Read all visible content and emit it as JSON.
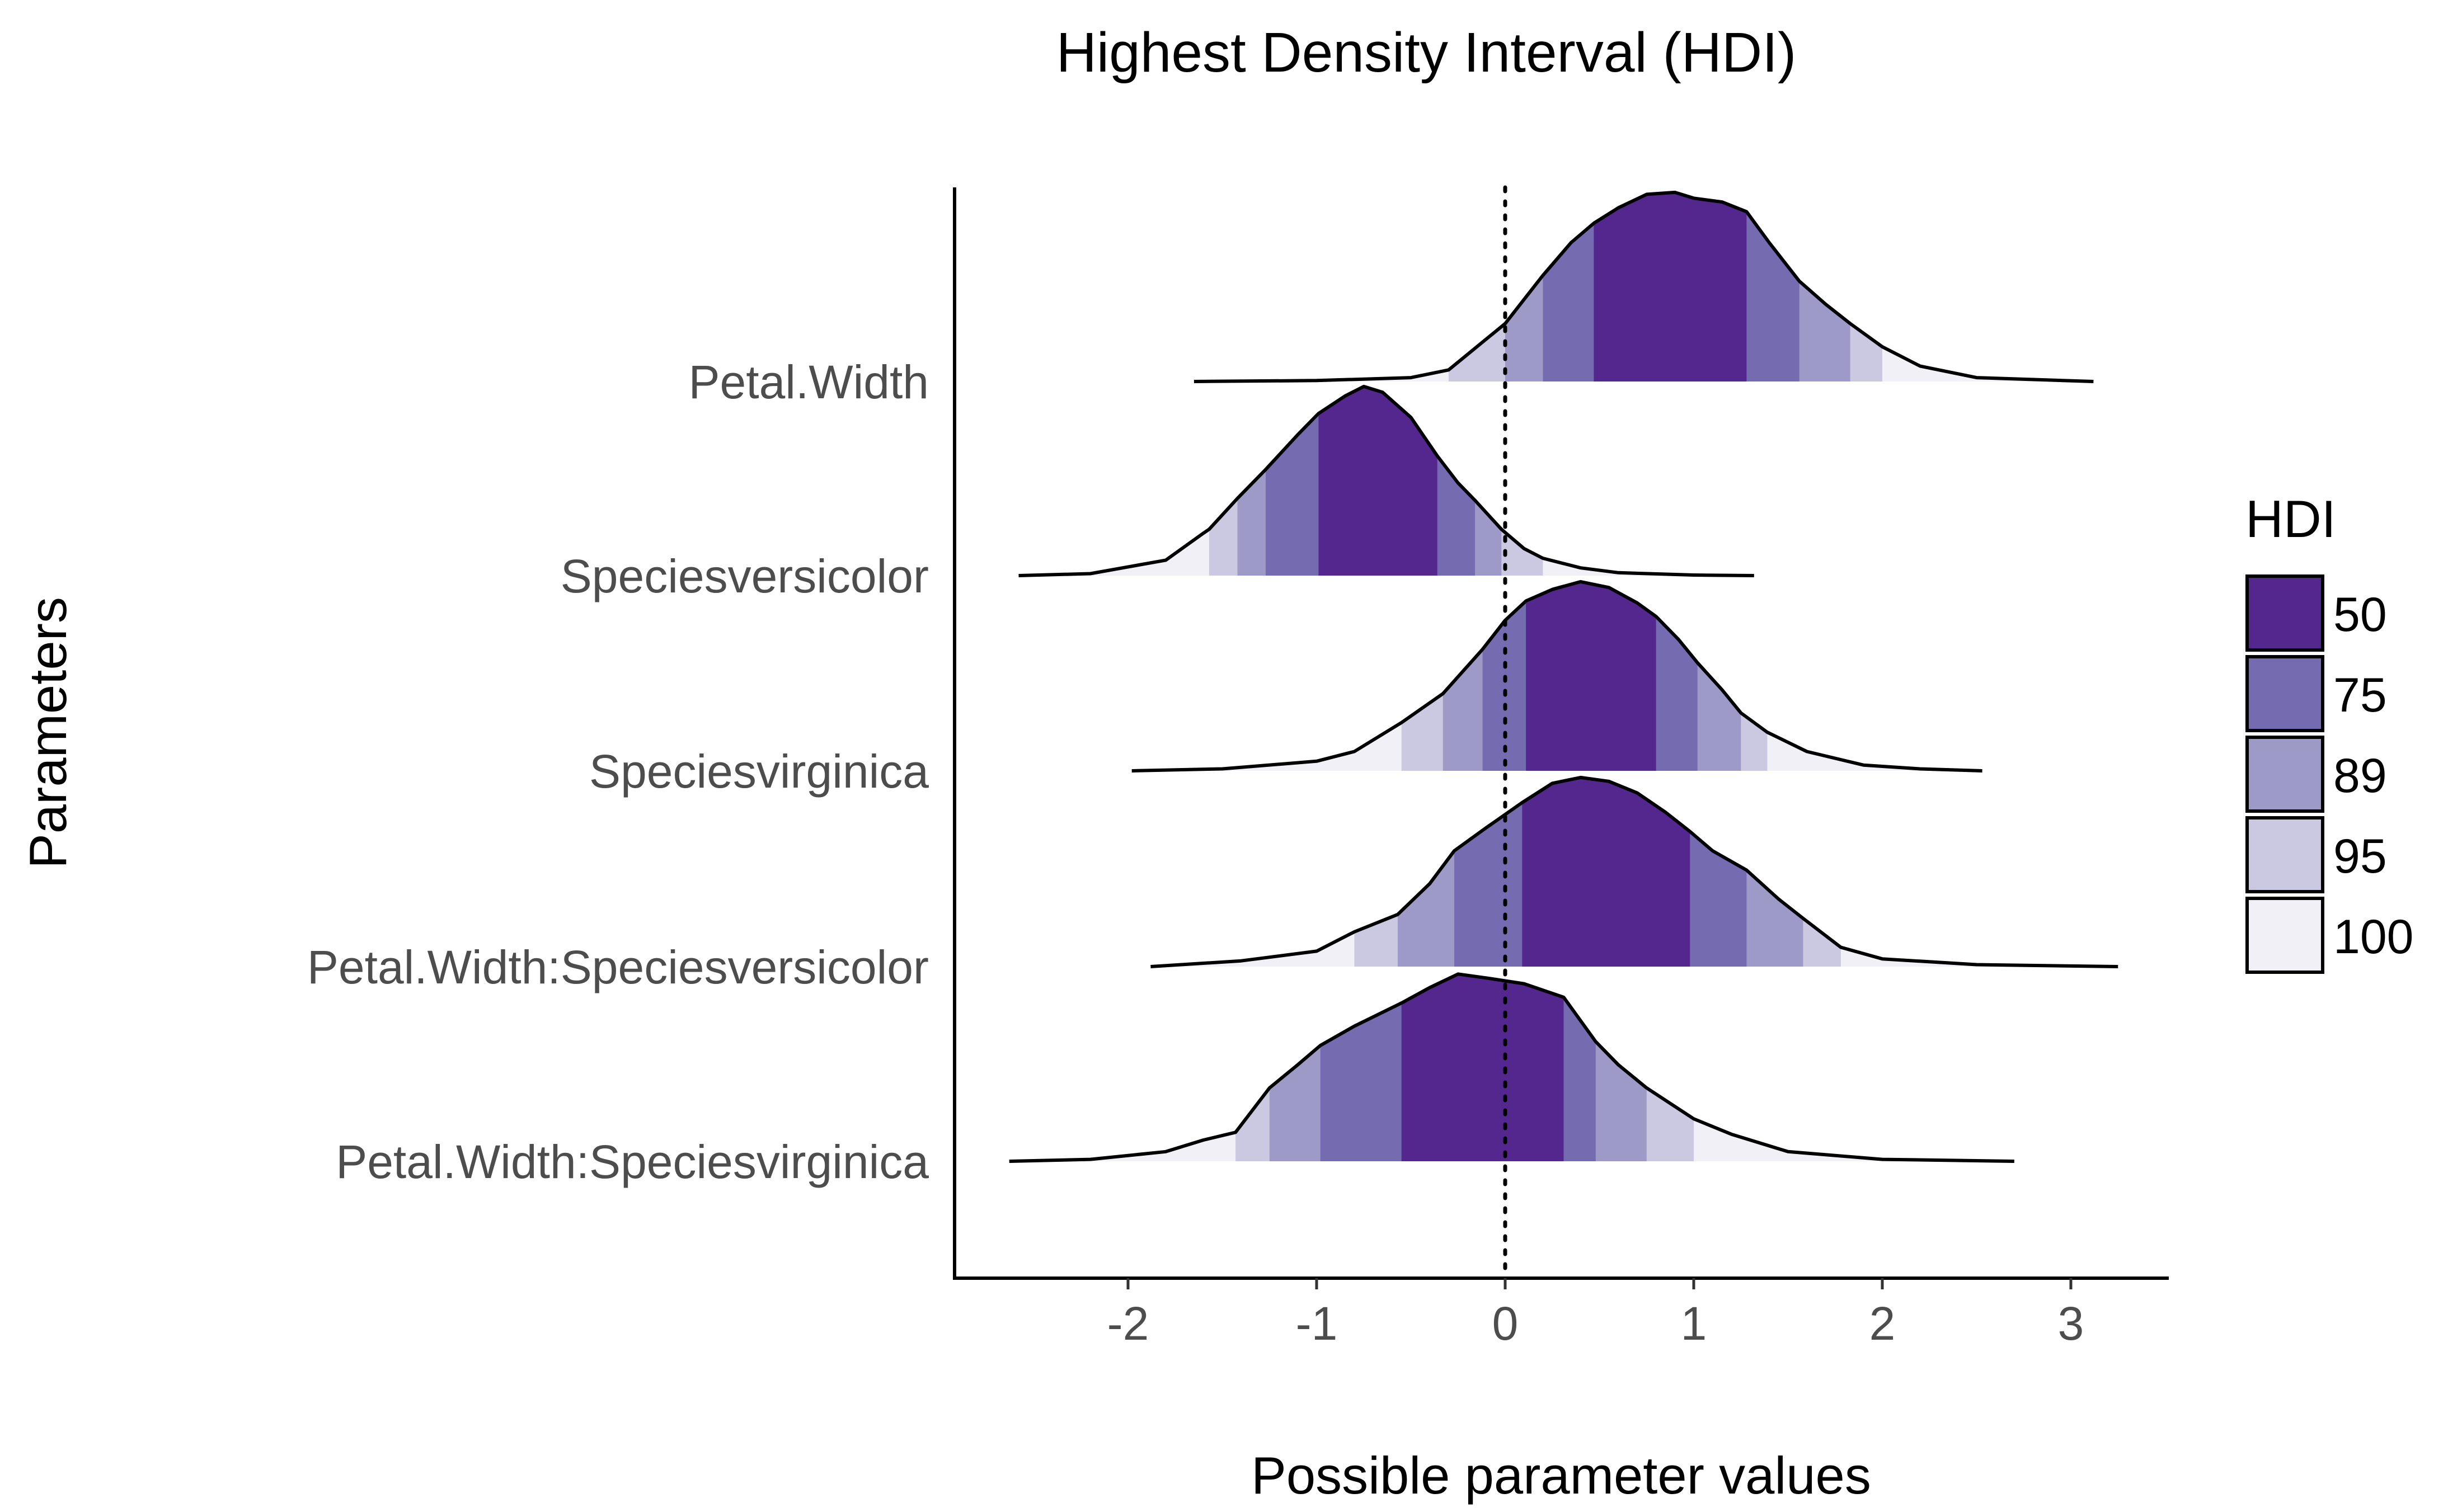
{
  "chart_data": {
    "type": "area",
    "subtype": "ridgeline-density-hdi",
    "title": "Highest Density Interval (HDI)",
    "xlabel": "Possible parameter values",
    "ylabel": "Parameters",
    "xlim": [
      -2.9,
      3.5
    ],
    "xticks": [
      "-2",
      "-1",
      "0",
      "1",
      "2",
      "3"
    ],
    "xtick_values": [
      -2,
      -1,
      0,
      1,
      2,
      3
    ],
    "reference_line": 0,
    "grid": false,
    "legend": {
      "title": "HDI",
      "position": "right",
      "entries": [
        "50",
        "75",
        "89",
        "95",
        "100"
      ],
      "colors": [
        "#54278f",
        "#756bb1",
        "#9e9ac8",
        "#cbc9e2",
        "#f2f0f7"
      ]
    },
    "categories": [
      "Petal.Width",
      "Speciesversicolor",
      "Speciesvirginica",
      "Petal.Width:Speciesversicolor",
      "Petal.Width:Speciesvirginica"
    ],
    "series": [
      {
        "name": "Petal.Width",
        "hdi": {
          "50": [
            0.47,
            1.28
          ],
          "75": [
            0.2,
            1.56
          ],
          "89": [
            0.0,
            1.83
          ],
          "95": [
            -0.3,
            2.0
          ],
          "100": [
            -1.65,
            3.12
          ]
        },
        "density": [
          [
            -1.65,
            0
          ],
          [
            -1.0,
            0.005
          ],
          [
            -0.5,
            0.02
          ],
          [
            -0.3,
            0.06
          ],
          [
            -0.1,
            0.22
          ],
          [
            0.0,
            0.3
          ],
          [
            0.2,
            0.55
          ],
          [
            0.35,
            0.72
          ],
          [
            0.47,
            0.82
          ],
          [
            0.6,
            0.9
          ],
          [
            0.75,
            0.97
          ],
          [
            0.9,
            0.98
          ],
          [
            1.0,
            0.95
          ],
          [
            1.15,
            0.93
          ],
          [
            1.28,
            0.88
          ],
          [
            1.4,
            0.72
          ],
          [
            1.56,
            0.52
          ],
          [
            1.7,
            0.4
          ],
          [
            1.83,
            0.3
          ],
          [
            2.0,
            0.18
          ],
          [
            2.2,
            0.08
          ],
          [
            2.5,
            0.02
          ],
          [
            3.12,
            0
          ]
        ]
      },
      {
        "name": "Speciesversicolor",
        "hdi": {
          "50": [
            -0.99,
            -0.36
          ],
          "75": [
            -1.27,
            -0.16
          ],
          "89": [
            -1.42,
            -0.02
          ],
          "95": [
            -1.57,
            0.2
          ],
          "100": [
            -2.58,
            1.32
          ]
        },
        "density": [
          [
            -2.58,
            0
          ],
          [
            -2.2,
            0.01
          ],
          [
            -1.8,
            0.08
          ],
          [
            -1.6,
            0.22
          ],
          [
            -1.57,
            0.24
          ],
          [
            -1.42,
            0.4
          ],
          [
            -1.27,
            0.55
          ],
          [
            -1.1,
            0.73
          ],
          [
            -0.99,
            0.84
          ],
          [
            -0.85,
            0.93
          ],
          [
            -0.75,
            0.98
          ],
          [
            -0.65,
            0.95
          ],
          [
            -0.5,
            0.82
          ],
          [
            -0.36,
            0.62
          ],
          [
            -0.25,
            0.48
          ],
          [
            -0.16,
            0.39
          ],
          [
            -0.02,
            0.24
          ],
          [
            0.1,
            0.14
          ],
          [
            0.2,
            0.09
          ],
          [
            0.4,
            0.04
          ],
          [
            0.6,
            0.015
          ],
          [
            1.0,
            0.003
          ],
          [
            1.32,
            0
          ]
        ]
      },
      {
        "name": "Speciesvirginica",
        "hdi": {
          "50": [
            0.11,
            0.8
          ],
          "75": [
            -0.12,
            1.02
          ],
          "89": [
            -0.33,
            1.25
          ],
          "95": [
            -0.55,
            1.39
          ],
          "100": [
            -1.98,
            2.53
          ]
        },
        "density": [
          [
            -1.98,
            0
          ],
          [
            -1.5,
            0.01
          ],
          [
            -1.0,
            0.05
          ],
          [
            -0.8,
            0.1
          ],
          [
            -0.55,
            0.25
          ],
          [
            -0.33,
            0.4
          ],
          [
            -0.12,
            0.63
          ],
          [
            0.0,
            0.78
          ],
          [
            0.11,
            0.88
          ],
          [
            0.25,
            0.94
          ],
          [
            0.4,
            0.98
          ],
          [
            0.55,
            0.95
          ],
          [
            0.7,
            0.87
          ],
          [
            0.8,
            0.8
          ],
          [
            0.92,
            0.68
          ],
          [
            1.02,
            0.56
          ],
          [
            1.15,
            0.42
          ],
          [
            1.25,
            0.3
          ],
          [
            1.39,
            0.2
          ],
          [
            1.6,
            0.1
          ],
          [
            1.9,
            0.03
          ],
          [
            2.2,
            0.01
          ],
          [
            2.53,
            0
          ]
        ]
      },
      {
        "name": "Petal.Width:Speciesversicolor",
        "hdi": {
          "50": [
            0.09,
            0.98
          ],
          "75": [
            -0.27,
            1.28
          ],
          "89": [
            -0.57,
            1.58
          ],
          "95": [
            -0.8,
            1.78
          ],
          "100": [
            -1.88,
            3.25
          ]
        },
        "density": [
          [
            -1.88,
            0
          ],
          [
            -1.4,
            0.03
          ],
          [
            -1.0,
            0.08
          ],
          [
            -0.8,
            0.18
          ],
          [
            -0.57,
            0.27
          ],
          [
            -0.4,
            0.43
          ],
          [
            -0.27,
            0.6
          ],
          [
            -0.1,
            0.72
          ],
          [
            0.09,
            0.85
          ],
          [
            0.25,
            0.95
          ],
          [
            0.4,
            0.98
          ],
          [
            0.55,
            0.96
          ],
          [
            0.7,
            0.9
          ],
          [
            0.85,
            0.8
          ],
          [
            0.98,
            0.7
          ],
          [
            1.1,
            0.6
          ],
          [
            1.28,
            0.5
          ],
          [
            1.45,
            0.35
          ],
          [
            1.58,
            0.25
          ],
          [
            1.78,
            0.1
          ],
          [
            2.0,
            0.04
          ],
          [
            2.5,
            0.01
          ],
          [
            3.25,
            0
          ]
        ]
      },
      {
        "name": "Petal.Width:Speciesvirginica",
        "hdi": {
          "50": [
            -0.55,
            0.31
          ],
          "75": [
            -0.98,
            0.48
          ],
          "89": [
            -1.25,
            0.75
          ],
          "95": [
            -1.43,
            1.0
          ],
          "100": [
            -2.63,
            2.7
          ]
        },
        "density": [
          [
            -2.63,
            0
          ],
          [
            -2.2,
            0.01
          ],
          [
            -1.8,
            0.05
          ],
          [
            -1.6,
            0.11
          ],
          [
            -1.43,
            0.15
          ],
          [
            -1.25,
            0.38
          ],
          [
            -1.1,
            0.5
          ],
          [
            -0.98,
            0.6
          ],
          [
            -0.8,
            0.7
          ],
          [
            -0.55,
            0.82
          ],
          [
            -0.4,
            0.9
          ],
          [
            -0.25,
            0.97
          ],
          [
            -0.1,
            0.95
          ],
          [
            0.1,
            0.92
          ],
          [
            0.31,
            0.85
          ],
          [
            0.48,
            0.62
          ],
          [
            0.6,
            0.5
          ],
          [
            0.75,
            0.38
          ],
          [
            1.0,
            0.22
          ],
          [
            1.2,
            0.14
          ],
          [
            1.5,
            0.05
          ],
          [
            2.0,
            0.01
          ],
          [
            2.7,
            0
          ]
        ]
      }
    ]
  }
}
